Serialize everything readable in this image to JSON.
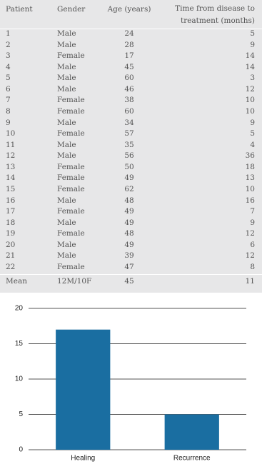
{
  "table": {
    "header": [
      "Patient",
      "Gender",
      "Age (years)",
      "Time from disease to treatment (months)"
    ],
    "rows": [
      [
        1,
        "Male",
        24,
        5
      ],
      [
        2,
        "Male",
        28,
        9
      ],
      [
        3,
        "Female",
        17,
        14
      ],
      [
        4,
        "Male",
        45,
        14
      ],
      [
        5,
        "Male",
        60,
        3
      ],
      [
        6,
        "Male",
        46,
        12
      ],
      [
        7,
        "Female",
        38,
        10
      ],
      [
        8,
        "Female",
        60,
        10
      ],
      [
        9,
        "Male",
        34,
        9
      ],
      [
        10,
        "Female",
        57,
        5
      ],
      [
        11,
        "Male",
        35,
        4
      ],
      [
        12,
        "Male",
        56,
        36
      ],
      [
        13,
        "Female",
        50,
        18
      ],
      [
        14,
        "Female",
        49,
        13
      ],
      [
        15,
        "Female",
        62,
        10
      ],
      [
        16,
        "Male",
        48,
        16
      ],
      [
        17,
        "Female",
        49,
        7
      ],
      [
        18,
        "Male",
        49,
        9
      ],
      [
        19,
        "Female",
        48,
        12
      ],
      [
        20,
        "Male",
        49,
        6
      ],
      [
        21,
        "Male",
        39,
        12
      ],
      [
        22,
        "Female",
        47,
        8
      ]
    ],
    "footer": [
      "Mean",
      "12M/10F",
      45,
      11
    ]
  },
  "chart_data": {
    "type": "bar",
    "categories": [
      "Healing",
      "Recurrence"
    ],
    "values": [
      17,
      5
    ],
    "color": "#1a6ea1",
    "ylim": [
      0,
      20
    ],
    "yticks": [
      0,
      5,
      10,
      15,
      20
    ],
    "grid": true
  }
}
